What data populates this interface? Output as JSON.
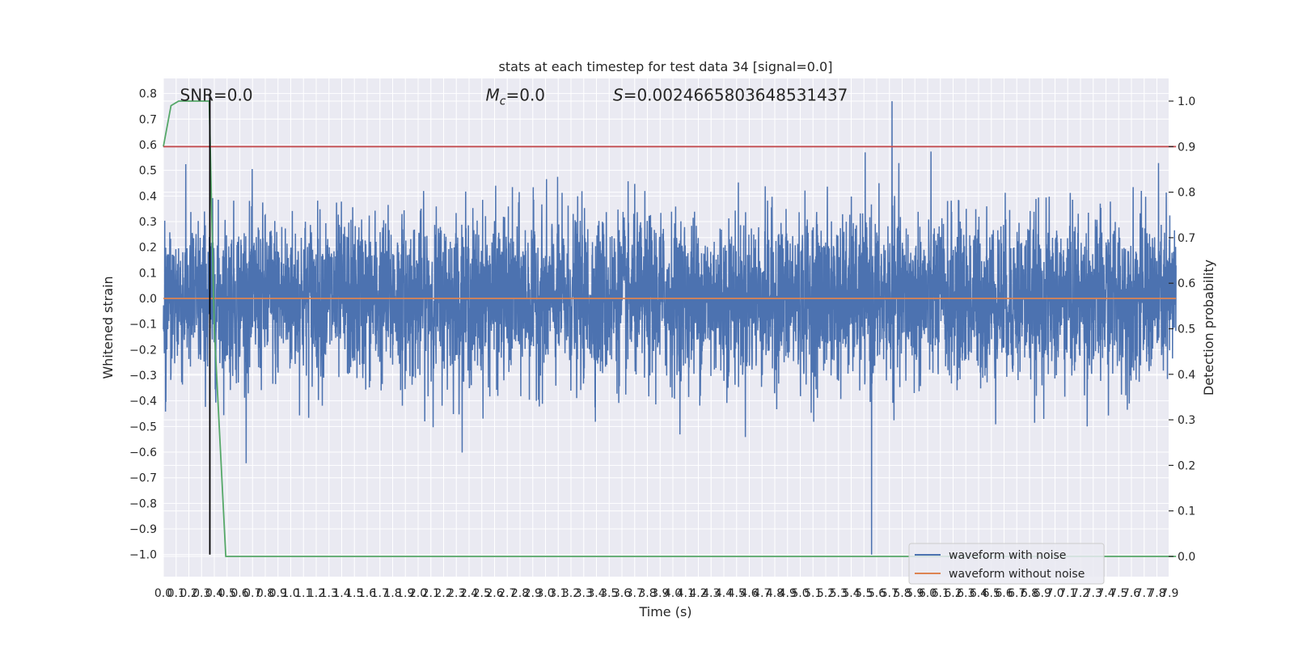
{
  "chart_data": {
    "type": "line",
    "title": "stats at each timestep for test data 34 [signal=0.0]",
    "xlabel": "Time (s)",
    "ylabel": "Whitened strain",
    "y2label": "Detection probability",
    "xlim": [
      0,
      7.95
    ],
    "ylim": [
      -1.08,
      0.86
    ],
    "y2lim": [
      -0.048,
      1.048
    ],
    "x_ticks": [
      0.0,
      0.1,
      0.2,
      0.3,
      0.4,
      0.5,
      0.6,
      0.7,
      0.8,
      0.9,
      1.0,
      1.1,
      1.2,
      1.3,
      1.4,
      1.5,
      1.6,
      1.7,
      1.8,
      1.9,
      2.0,
      2.1,
      2.2,
      2.3,
      2.4,
      2.5,
      2.6,
      2.7,
      2.8,
      2.9,
      3.0,
      3.1,
      3.2,
      3.3,
      3.4,
      3.5,
      3.6,
      3.7,
      3.8,
      3.9,
      4.0,
      4.1,
      4.2,
      4.3,
      4.4,
      4.5,
      4.6,
      4.7,
      4.8,
      4.9,
      5.0,
      5.1,
      5.2,
      5.3,
      5.4,
      5.5,
      5.6,
      5.7,
      5.8,
      5.9,
      6.0,
      6.1,
      6.2,
      6.3,
      6.4,
      6.5,
      6.6,
      6.7,
      6.8,
      6.9,
      7.0,
      7.1,
      7.2,
      7.3,
      7.4,
      7.5,
      7.6,
      7.7,
      7.8,
      7.9
    ],
    "x_tick_labels": [
      "0.0",
      "0.1",
      "0.2",
      "0.3",
      "0.4",
      "0.5",
      "0.6",
      "0.7",
      "0.8",
      "0.9",
      "1.0",
      "1.1",
      "1.2",
      "1.3",
      "1.4",
      "1.5",
      "1.6",
      "1.7",
      "1.8",
      "1.9",
      "2.0",
      "2.1",
      "2.2",
      "2.3",
      "2.4",
      "2.5",
      "2.6",
      "2.7",
      "2.8",
      "2.9",
      "3.0",
      "3.1",
      "3.2",
      "3.3",
      "3.4",
      "3.5",
      "3.6",
      "3.7",
      "3.8",
      "3.9",
      "4.0",
      "4.1",
      "4.2",
      "4.3",
      "4.4",
      "4.5",
      "4.6",
      "4.7",
      "4.8",
      "4.9",
      "5.0",
      "5.1",
      "5.2",
      "5.3",
      "5.4",
      "5.5",
      "5.6",
      "5.7",
      "5.8",
      "5.9",
      "6.0",
      "6.1",
      "6.2",
      "6.3",
      "6.4",
      "6.5",
      "6.6",
      "6.7",
      "6.8",
      "6.9",
      "7.0",
      "7.1",
      "7.2",
      "7.3",
      "7.4",
      "7.5",
      "7.6",
      "7.7",
      "7.8",
      "7.9"
    ],
    "y_ticks": [
      0.8,
      0.7,
      0.6,
      0.5,
      0.4,
      0.3,
      0.2,
      0.1,
      0.0,
      -0.1,
      -0.2,
      -0.3,
      -0.4,
      -0.5,
      -0.6,
      -0.7,
      -0.8,
      -0.9,
      -1.0
    ],
    "y_tick_labels": [
      "0.8",
      "0.7",
      "0.6",
      "0.5",
      "0.4",
      "0.3",
      "0.2",
      "0.1",
      "0.0",
      "−0.1",
      "−0.2",
      "−0.3",
      "−0.4",
      "−0.5",
      "−0.6",
      "−0.7",
      "−0.8",
      "−0.9",
      "−1.0"
    ],
    "y2_ticks": [
      1.0,
      0.9,
      0.8,
      0.7,
      0.6,
      0.5,
      0.4,
      0.3,
      0.2,
      0.1,
      0.0
    ],
    "y2_tick_labels": [
      "1.0",
      "0.9",
      "0.8",
      "0.7",
      "0.6",
      "0.5",
      "0.4",
      "0.3",
      "0.2",
      "0.1",
      "0.0"
    ],
    "grid": true,
    "legend_position": "lower-right",
    "annotations": [
      {
        "text": "SNR=0.0",
        "x": 0.2,
        "y": 0.8
      },
      {
        "text": "M_c=0.0",
        "x": 2.6,
        "y": 0.8
      },
      {
        "text": "S=0.0024665803648531437",
        "x": 3.6,
        "y": 0.8
      }
    ],
    "series": [
      {
        "name": "waveform with noise",
        "color": "#4c72b0",
        "axis": "left",
        "noise_std": 0.16,
        "noise_extremes": {
          "max": 0.77,
          "min": -1.0
        },
        "noise_extreme_x": {
          "max": 5.72,
          "min": 5.56
        }
      },
      {
        "name": "waveform without noise",
        "color": "#dd8452",
        "axis": "left",
        "x": [
          0.0,
          7.95
        ],
        "y": [
          0.0,
          0.0
        ]
      },
      {
        "color": "#55a868",
        "axis": "right",
        "x": [
          0.0,
          0.06,
          0.12,
          0.2,
          0.3,
          0.36,
          0.4,
          0.49,
          7.95
        ],
        "y": [
          0.9,
          0.99,
          1.0,
          1.0,
          1.0,
          1.0,
          0.5,
          0.0,
          0.0
        ]
      },
      {
        "color": "#c44e52",
        "axis": "right",
        "x": [
          0.0,
          7.95
        ],
        "y": [
          0.9,
          0.9
        ]
      },
      {
        "color": "#000000",
        "axis": "left",
        "x": [
          0.365,
          0.365
        ],
        "y": [
          -1.0,
          0.8
        ]
      }
    ]
  }
}
